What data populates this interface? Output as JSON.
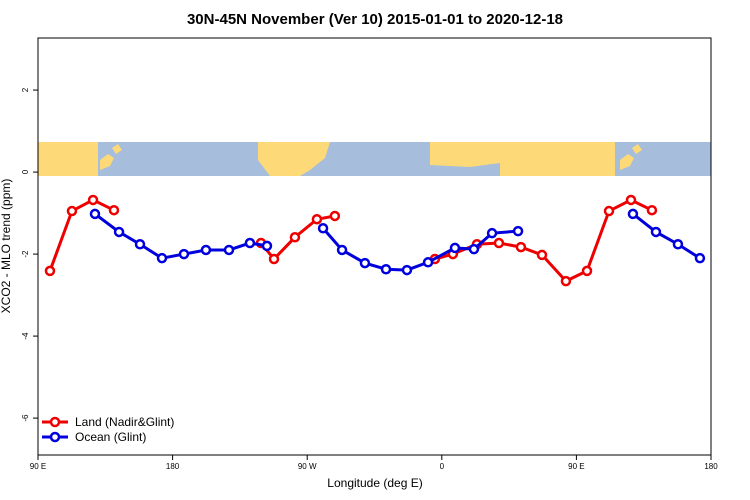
{
  "chart_data": {
    "type": "line",
    "title": "30N-45N November (Ver 10)   2015-01-01 to 2020-12-18",
    "x_label": "Longitude (deg E)",
    "y_label": "XCO2 - MLO trend (ppm)",
    "xlim": [
      90,
      540
    ],
    "ylim": [
      -6.9,
      3.27
    ],
    "xticks": [
      {
        "value": 90,
        "label": "90 E"
      },
      180,
      {
        "value": 270,
        "label": "90 W"
      },
      {
        "value": 360,
        "label": "0"
      },
      {
        "value": 450,
        "label": "90 E"
      },
      {
        "value": 540,
        "label": "180"
      }
    ],
    "yticks": [
      -6,
      -4,
      -2,
      0,
      2
    ],
    "legend": "bottom-left",
    "series": [
      {
        "name": "Land (Nadir&Glint)",
        "color": "#ee0000",
        "x": [
          98,
          112.7,
          126.8,
          140.8,
          null,
          239.1,
          247.8,
          261.8,
          276.5,
          288.5,
          null,
          355.4,
          367.4,
          383.5,
          398.2,
          412.9,
          427,
          443,
          457.1,
          471.8,
          486.5,
          500.5
        ],
        "values": [
          -2.41,
          -0.95,
          -0.68,
          -0.93,
          null,
          -1.73,
          -2.12,
          -1.59,
          -1.15,
          -1.07,
          null,
          -2.12,
          -2.0,
          -1.76,
          -1.73,
          -1.83,
          -2.02,
          -2.66,
          -2.41,
          -0.95,
          -0.68,
          -0.93
        ]
      },
      {
        "name": "Ocean (Glint)",
        "color": "#0000dd",
        "x": [
          128.1,
          144.2,
          158.2,
          172.9,
          187.6,
          202.3,
          217.7,
          231.7,
          243.1,
          null,
          280.6,
          293.3,
          308.6,
          322.7,
          336.7,
          350.8,
          368.8,
          381.5,
          393.6,
          411,
          null,
          487.8,
          503.2,
          517.9,
          532.6
        ],
        "values": [
          -1.02,
          -1.46,
          -1.76,
          -2.1,
          -2.0,
          -1.9,
          -1.9,
          -1.73,
          -1.8,
          null,
          -1.37,
          -1.9,
          -2.22,
          -2.37,
          -2.39,
          -2.2,
          -1.85,
          -1.88,
          -1.49,
          -1.44,
          null,
          -1.02,
          -1.46,
          -1.76,
          -2.1
        ]
      }
    ]
  }
}
